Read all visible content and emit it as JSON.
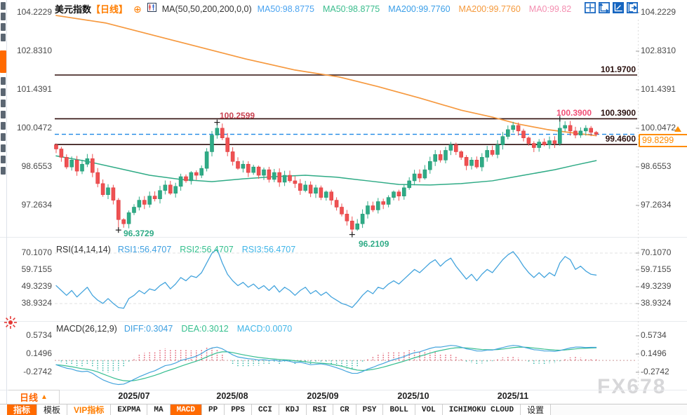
{
  "header": {
    "symbol": "美元指数",
    "timeframe": "【日线】",
    "add_icon_glyph": "⊕",
    "ma_settings": "MA(50,50,200,200,0,0)",
    "ma_values": [
      {
        "label": "MA50:98.8775",
        "color": "#4aa3f0"
      },
      {
        "label": "MA50:98.8775",
        "color": "#3bbd8d"
      },
      {
        "label": "MA200:99.7760",
        "color": "#3b9fe8"
      },
      {
        "label": "MA200:99.7760",
        "color": "#f59a3d"
      },
      {
        "label": "MA0:99.82",
        "color": "#f48fb1"
      }
    ],
    "tools": [
      {
        "name": "crosshair-tool-icon",
        "active": false
      },
      {
        "name": "axis-zoom-tool-icon",
        "active": false
      },
      {
        "name": "axis-scale-tool-icon",
        "active": true
      },
      {
        "name": "export-tool-icon",
        "active": false
      }
    ]
  },
  "price_pane": {
    "axis_labels": [
      "104.2229",
      "102.8310",
      "101.4391",
      "100.0472",
      "98.6553",
      "97.2634"
    ],
    "axis_values": [
      104.2229,
      102.831,
      101.4391,
      100.0472,
      98.6553,
      97.2634
    ],
    "level_lines": [
      {
        "label": "101.9700",
        "value": 101.97
      },
      {
        "label": "100.3900",
        "value": 100.39
      },
      {
        "label": "99.4600",
        "value": 99.46
      }
    ],
    "current_price": {
      "label": "99.8299",
      "value": 99.8299
    },
    "annotations": {
      "peak_aug": "100.2599",
      "peak_nov": "100.3900",
      "low_jul": "96.3729",
      "low_sep": "96.2109"
    }
  },
  "rsi_pane": {
    "title": "RSI(14,14,14)",
    "values": [
      {
        "label": "RSI1:56.4707",
        "color": "#3d9fe0"
      },
      {
        "label": "RSI2:56.4707",
        "color": "#35c08e"
      },
      {
        "label": "RSI3:56.4707",
        "color": "#3fb5e8"
      }
    ],
    "axis_labels": [
      "70.1070",
      "59.7155",
      "49.3239",
      "38.9324"
    ],
    "axis_values": [
      70.107,
      59.7155,
      49.3239,
      38.9324
    ]
  },
  "macd_pane": {
    "title": "MACD(26,12,9)",
    "values": [
      {
        "label": "DIFF:0.3047",
        "color": "#3d9fe0"
      },
      {
        "label": "DEA:0.3012",
        "color": "#35c08e"
      },
      {
        "label": "MACD:0.0070",
        "color": "#3fb5e8"
      }
    ],
    "axis_labels": [
      "0.5734",
      "0.1496",
      "-0.2742"
    ],
    "axis_values": [
      0.5734,
      0.1496,
      -0.2742
    ]
  },
  "x_axis": {
    "labels": [
      "2025/07",
      "2025/08",
      "2025/09",
      "2025/10",
      "2025/11"
    ]
  },
  "timeframe_button": {
    "label": "日线",
    "arrow": "▲"
  },
  "toolbar": {
    "tabs": [
      {
        "label": "指标",
        "name": "indicators",
        "active": true,
        "vip": false,
        "mono": false
      },
      {
        "label": "模板",
        "name": "templates",
        "active": false,
        "vip": false,
        "mono": false
      },
      {
        "label": "VIP指标",
        "name": "vip-indicators",
        "active": false,
        "vip": true,
        "mono": false
      },
      {
        "label": "EXPMA",
        "name": "expma",
        "active": false,
        "vip": false,
        "mono": true
      },
      {
        "label": "MA",
        "name": "ma",
        "active": false,
        "vip": false,
        "mono": true
      },
      {
        "label": "MACD",
        "name": "macd",
        "active": true,
        "vip": false,
        "mono": true
      },
      {
        "label": "PP",
        "name": "pp",
        "active": false,
        "vip": false,
        "mono": true
      },
      {
        "label": "PPS",
        "name": "pps",
        "active": false,
        "vip": false,
        "mono": true
      },
      {
        "label": "CCI",
        "name": "cci",
        "active": false,
        "vip": false,
        "mono": true
      },
      {
        "label": "KDJ",
        "name": "kdj",
        "active": false,
        "vip": false,
        "mono": true
      },
      {
        "label": "RSI",
        "name": "rsi",
        "active": false,
        "vip": false,
        "mono": true
      },
      {
        "label": "CR",
        "name": "cr",
        "active": false,
        "vip": false,
        "mono": true
      },
      {
        "label": "PSY",
        "name": "psy",
        "active": false,
        "vip": false,
        "mono": true
      },
      {
        "label": "BOLL",
        "name": "boll",
        "active": false,
        "vip": false,
        "mono": true
      },
      {
        "label": "VOL",
        "name": "vol",
        "active": false,
        "vip": false,
        "mono": true
      },
      {
        "label": "ICHIMOKU CLOUD",
        "name": "ichimoku-cloud",
        "active": false,
        "vip": false,
        "mono": true
      },
      {
        "label": "设置",
        "name": "settings",
        "active": false,
        "vip": false,
        "mono": false
      }
    ]
  },
  "watermark": "FX678",
  "colors": {
    "accent_orange": "#ff6a00",
    "candle_up": "#2fab86",
    "candle_down": "#ef5152",
    "ma200_line": "#f6993f",
    "ma50_line": "#2fab86",
    "rsi_line": "#44a4dd",
    "level_line": "#2f0e0c",
    "current_price_line": "#1e88e5",
    "price_badge": "#ff8c00"
  },
  "chart_data": {
    "type": "candlestick",
    "title": "美元指数 日线 (US Dollar Index, daily)",
    "x_labels": [
      "2025/07",
      "2025/08",
      "2025/09",
      "2025/10",
      "2025/11"
    ],
    "price_axis_range": [
      96.0,
      104.5
    ],
    "closes": [
      99.3,
      99.0,
      98.65,
      98.9,
      98.5,
      98.75,
      98.95,
      98.45,
      98.05,
      97.65,
      97.9,
      97.45,
      96.75,
      96.6,
      97.0,
      97.2,
      97.45,
      97.3,
      97.6,
      97.5,
      97.8,
      98.0,
      97.7,
      97.95,
      98.3,
      98.15,
      98.45,
      98.35,
      98.6,
      99.2,
      99.8,
      100.05,
      99.7,
      99.2,
      98.85,
      98.6,
      98.75,
      98.45,
      98.65,
      98.35,
      98.55,
      98.2,
      98.45,
      98.1,
      98.35,
      98.15,
      98.05,
      97.8,
      98.0,
      97.7,
      97.9,
      97.55,
      97.75,
      97.45,
      97.2,
      96.95,
      96.7,
      96.4,
      96.6,
      96.95,
      97.25,
      97.1,
      97.4,
      97.3,
      97.55,
      97.75,
      97.6,
      97.9,
      98.15,
      98.4,
      98.25,
      98.55,
      98.85,
      99.1,
      98.9,
      99.25,
      99.45,
      99.2,
      99.0,
      98.7,
      98.9,
      98.65,
      99.0,
      99.25,
      99.1,
      99.45,
      99.75,
      100.0,
      100.15,
      99.95,
      99.7,
      99.5,
      99.35,
      99.55,
      99.45,
      99.6,
      99.5,
      100.05,
      100.15,
      99.95,
      99.8,
      99.95,
      100.05,
      99.9,
      99.83
    ],
    "first_open": 99.45,
    "wick_overrides": [
      {
        "i": 12,
        "low": 96.3729
      },
      {
        "i": 31,
        "high": 100.2599
      },
      {
        "i": 57,
        "low": 96.2109
      },
      {
        "i": 97,
        "high": 100.39
      },
      {
        "i": 98,
        "high": 100.3
      }
    ],
    "markers": [
      {
        "i": 31,
        "price": 100.2599
      },
      {
        "i": 12,
        "price": 96.3729
      },
      {
        "i": 57,
        "price": 96.2109
      },
      {
        "i": 97,
        "price": 100.39
      }
    ],
    "ma50_points": [
      [
        0,
        99.05
      ],
      [
        6,
        98.85
      ],
      [
        12,
        98.6
      ],
      [
        18,
        98.35
      ],
      [
        24,
        98.2
      ],
      [
        30,
        98.12
      ],
      [
        36,
        98.22
      ],
      [
        42,
        98.3
      ],
      [
        48,
        98.35
      ],
      [
        54,
        98.28
      ],
      [
        60,
        98.15
      ],
      [
        66,
        98.02
      ],
      [
        72,
        98.0
      ],
      [
        78,
        98.05
      ],
      [
        84,
        98.15
      ],
      [
        90,
        98.35
      ],
      [
        96,
        98.55
      ],
      [
        100,
        98.72
      ],
      [
        104,
        98.88
      ]
    ],
    "ma200_points": [
      [
        0,
        104.12
      ],
      [
        9.5,
        103.85
      ],
      [
        23,
        103.2
      ],
      [
        36.5,
        102.55
      ],
      [
        46,
        102.15
      ],
      [
        54.5,
        101.9
      ],
      [
        62,
        101.55
      ],
      [
        70,
        101.14
      ],
      [
        78,
        100.7
      ],
      [
        84,
        100.45
      ],
      [
        89,
        100.2
      ],
      [
        94.6,
        100.0
      ],
      [
        100,
        99.87
      ],
      [
        104,
        99.78
      ]
    ],
    "rsi": [
      50,
      47,
      44,
      47,
      43,
      46,
      49,
      44,
      41,
      39,
      42,
      39,
      36.5,
      36,
      42,
      44,
      47,
      45,
      48,
      47,
      50,
      52,
      48,
      51,
      55,
      53,
      56,
      55,
      58,
      64,
      70,
      72.5,
      64,
      57,
      53,
      50,
      52,
      49,
      51,
      48,
      50,
      47,
      50,
      46,
      49,
      47,
      44,
      47,
      49,
      45,
      47,
      44,
      46,
      43,
      41,
      39,
      38,
      36.5,
      40,
      44,
      47,
      45,
      49,
      48,
      51,
      53,
      51,
      54,
      57,
      60,
      58,
      61,
      64,
      66,
      62,
      65,
      67,
      62,
      58,
      54,
      57,
      53,
      57,
      60,
      58,
      62,
      66,
      69,
      71,
      67,
      62,
      58,
      55,
      58,
      55,
      58,
      56,
      64,
      68,
      66,
      60,
      62,
      59,
      57,
      56.5
    ],
    "macd_diff": [
      -0.1,
      -0.14,
      -0.18,
      -0.2,
      -0.24,
      -0.26,
      -0.25,
      -0.3,
      -0.38,
      -0.45,
      -0.5,
      -0.54,
      -0.56,
      -0.55,
      -0.5,
      -0.44,
      -0.38,
      -0.33,
      -0.28,
      -0.24,
      -0.18,
      -0.12,
      -0.1,
      -0.06,
      0.0,
      0.03,
      0.06,
      0.1,
      0.16,
      0.24,
      0.29,
      0.31,
      0.27,
      0.2,
      0.13,
      0.08,
      0.06,
      0.04,
      0.03,
      0.01,
      0.02,
      0.0,
      0.01,
      -0.02,
      0.0,
      -0.02,
      -0.05,
      -0.04,
      -0.07,
      -0.1,
      -0.09,
      -0.08,
      -0.1,
      -0.13,
      -0.17,
      -0.21,
      -0.26,
      -0.3,
      -0.3,
      -0.26,
      -0.2,
      -0.16,
      -0.11,
      -0.07,
      -0.02,
      0.02,
      0.05,
      0.09,
      0.14,
      0.18,
      0.2,
      0.24,
      0.28,
      0.31,
      0.31,
      0.33,
      0.35,
      0.34,
      0.31,
      0.27,
      0.25,
      0.22,
      0.22,
      0.24,
      0.24,
      0.27,
      0.3,
      0.33,
      0.35,
      0.34,
      0.31,
      0.28,
      0.25,
      0.24,
      0.22,
      0.22,
      0.21,
      0.23,
      0.26,
      0.29,
      0.31,
      0.31,
      0.3,
      0.305,
      0.3047
    ],
    "rsi_axis": [
      70.107,
      59.7155,
      49.3239,
      38.9324
    ],
    "macd_axis": [
      0.5734,
      0.1496,
      -0.2742
    ],
    "level_lines": [
      101.97,
      100.39,
      99.46
    ],
    "current_price": 99.8299
  }
}
